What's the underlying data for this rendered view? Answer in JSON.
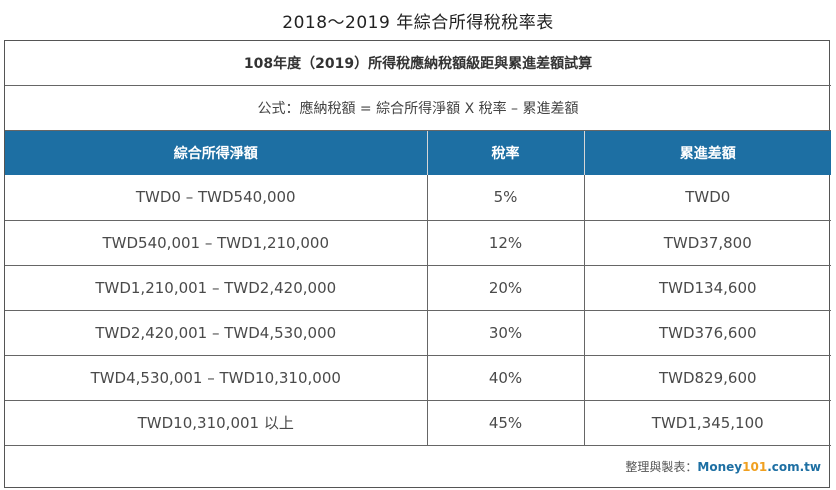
{
  "title": "2018～2019 年綜合所得稅稅率表",
  "caption": "108年度（2019）所得稅應納稅額級距與累進差額試算",
  "formula": "公式：應納稅額 = 綜合所得淨額 X 稅率 – 累進差額",
  "headers": [
    "綜合所得淨額",
    "稅率",
    "累進差額"
  ],
  "rows": [
    {
      "range": "TWD0 – TWD540,000",
      "rate": "5%",
      "deduction": "TWD0"
    },
    {
      "range": "TWD540,001 – TWD1,210,000",
      "rate": "12%",
      "deduction": "TWD37,800"
    },
    {
      "range": "TWD1,210,001 – TWD2,420,000",
      "rate": "20%",
      "deduction": "TWD134,600"
    },
    {
      "range": "TWD2,420,001 – TWD4,530,000",
      "rate": "30%",
      "deduction": "TWD376,600"
    },
    {
      "range": "TWD4,530,001 – TWD10,310,000",
      "rate": "40%",
      "deduction": "TWD829,600"
    },
    {
      "range": "TWD10,310,001 以上",
      "rate": "45%",
      "deduction": "TWD1,345,100"
    }
  ],
  "source": {
    "prefix": "整理與製表：",
    "brand_name": "Money",
    "brand_num": "101",
    "brand_domain": ".com.tw"
  },
  "colors": {
    "header_bg": "#1d6fa3",
    "brand_blue": "#1d6fa3",
    "brand_orange": "#f0a020"
  }
}
